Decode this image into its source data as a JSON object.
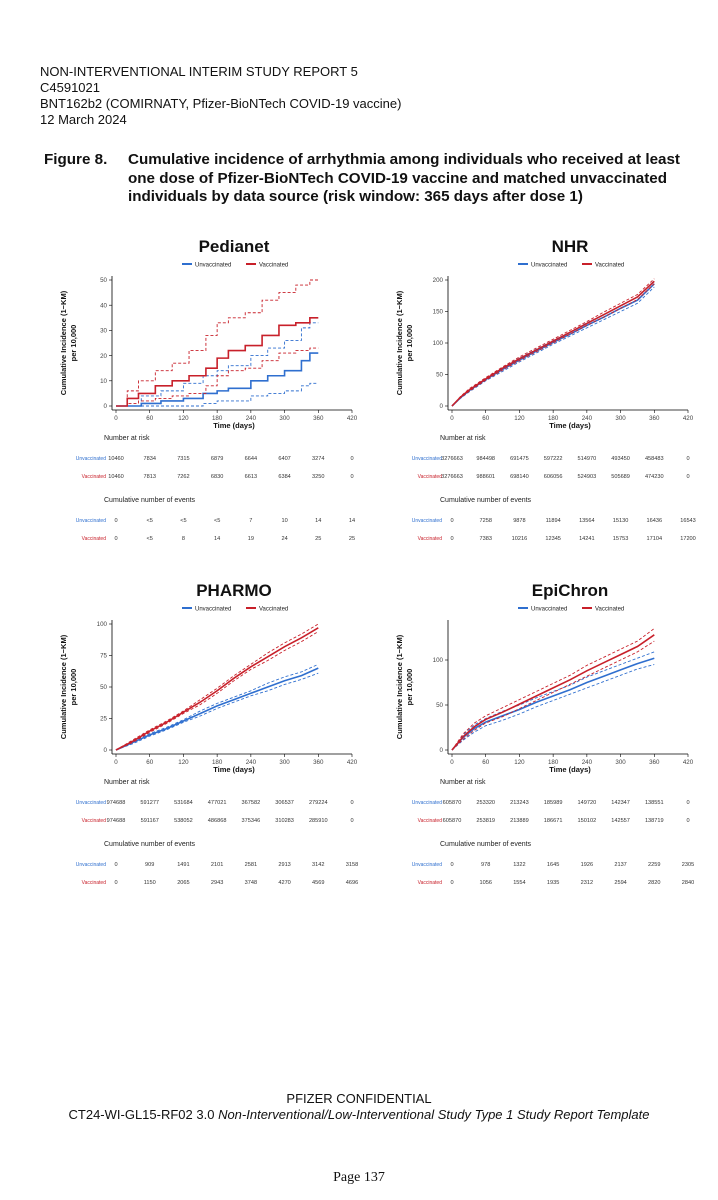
{
  "header": {
    "lines": [
      "NON-INTERVENTIONAL INTERIM STUDY REPORT 5",
      "C4591021",
      "BNT162b2 (COMIRNATY, Pfizer-BioNTech COVID-19 vaccine)",
      "12 March 2024"
    ]
  },
  "figure": {
    "label": "Figure 8.",
    "caption": "Cumulative incidence of arrhythmia among individuals who received at least one dose of Pfizer-BioNTech COVID-19 vaccine and matched unvaccinated individuals by data source (risk window: 365 days after dose 1)"
  },
  "footer": {
    "confidential": "PFIZER CONFIDENTIAL",
    "template_code": "CT24-WI-GL15-RF02 3.0 ",
    "template_name": "Non-Interventional/Low-Interventional Study Type 1 Study Report Template",
    "page": "Page 137"
  },
  "colors": {
    "unvaccinated": "#2f6fcf",
    "vaccinated": "#c8202a"
  },
  "chart_data": [
    {
      "type": "line",
      "title": "Pedianet",
      "xlabel": "Time (days)",
      "ylabel": "Cumulative Incidence (1−KM)\nper 10,000",
      "xlim": [
        0,
        420
      ],
      "ylim": [
        0,
        50
      ],
      "xticks": [
        0,
        60,
        120,
        180,
        240,
        300,
        360,
        420
      ],
      "yticks": [
        0,
        10,
        20,
        30,
        40,
        50
      ],
      "legend": "top",
      "step": true,
      "series": [
        {
          "name": "Unvaccinated",
          "x": [
            0,
            45,
            80,
            120,
            155,
            180,
            200,
            240,
            270,
            300,
            330,
            345,
            360
          ],
          "y": [
            0,
            1,
            2,
            3,
            5,
            6,
            7,
            10,
            12,
            14,
            18,
            21,
            21
          ],
          "lower": [
            0,
            0,
            0,
            0,
            1,
            2,
            2,
            4,
            5,
            6,
            8,
            9,
            9
          ],
          "upper": [
            0,
            4,
            6,
            9,
            12,
            14,
            16,
            20,
            23,
            26,
            31,
            33,
            33
          ]
        },
        {
          "name": "Vaccinated",
          "x": [
            0,
            20,
            40,
            70,
            100,
            130,
            160,
            180,
            200,
            230,
            260,
            290,
            320,
            345,
            360
          ],
          "y": [
            0,
            3,
            5,
            8,
            10,
            12,
            15,
            19,
            22,
            24,
            28,
            32,
            33,
            35,
            35
          ],
          "lower": [
            0,
            1,
            2,
            3,
            4,
            5,
            8,
            12,
            14,
            15,
            18,
            21,
            22,
            23,
            23
          ],
          "upper": [
            0,
            6,
            10,
            14,
            17,
            22,
            28,
            33,
            35,
            37,
            42,
            45,
            48,
            50,
            50
          ]
        }
      ],
      "number_at_risk": {
        "title": "Number at risk",
        "rows": [
          {
            "name": "Unvaccinated",
            "values": [
              "10460",
              "7834",
              "7315",
              "6879",
              "6644",
              "6407",
              "3274",
              "0"
            ]
          },
          {
            "name": "Vaccinated",
            "values": [
              "10460",
              "7813",
              "7262",
              "6830",
              "6613",
              "6384",
              "3250",
              "0"
            ]
          }
        ]
      },
      "cumulative_events": {
        "title": "Cumulative number of events",
        "rows": [
          {
            "name": "Unvaccinated",
            "values": [
              "0",
              "<5",
              "<5",
              "<5",
              "7",
              "10",
              "14",
              "14"
            ]
          },
          {
            "name": "Vaccinated",
            "values": [
              "0",
              "<5",
              "8",
              "14",
              "19",
              "24",
              "25",
              "25"
            ]
          }
        ]
      }
    },
    {
      "type": "line",
      "title": "NHR",
      "xlabel": "Time (days)",
      "ylabel": "Cumulative Incidence (1−KM)\nper 10,000",
      "xlim": [
        0,
        420
      ],
      "ylim": [
        0,
        200
      ],
      "xticks": [
        0,
        60,
        120,
        180,
        240,
        300,
        360,
        420
      ],
      "yticks": [
        0,
        50,
        100,
        150,
        200
      ],
      "legend": "top",
      "step": false,
      "series": [
        {
          "name": "Unvaccinated",
          "x": [
            0,
            15,
            30,
            60,
            90,
            120,
            150,
            180,
            210,
            240,
            270,
            300,
            330,
            360
          ],
          "y": [
            0,
            13,
            24,
            42,
            58,
            73,
            87,
            101,
            114,
            128,
            141,
            155,
            168,
            194
          ],
          "lower": [
            0,
            12,
            22,
            40,
            55,
            70,
            84,
            98,
            111,
            124,
            137,
            150,
            163,
            189
          ],
          "upper": [
            0,
            14,
            26,
            44,
            61,
            76,
            90,
            104,
            117,
            132,
            145,
            159,
            173,
            199
          ]
        },
        {
          "name": "Vaccinated",
          "x": [
            0,
            15,
            30,
            60,
            90,
            120,
            150,
            180,
            210,
            240,
            270,
            300,
            330,
            360
          ],
          "y": [
            0,
            14,
            25,
            43,
            60,
            75,
            89,
            103,
            117,
            131,
            145,
            159,
            173,
            198
          ],
          "lower": [
            0,
            13,
            23,
            41,
            57,
            72,
            86,
            100,
            114,
            128,
            141,
            155,
            169,
            194
          ],
          "upper": [
            0,
            15,
            27,
            45,
            62,
            78,
            92,
            106,
            120,
            134,
            149,
            163,
            177,
            202
          ]
        }
      ],
      "number_at_risk": {
        "title": "Number at risk",
        "rows": [
          {
            "name": "Unvaccinated",
            "values": [
              "3276663",
              "984498",
              "691475",
              "597222",
              "514970",
              "493450",
              "458483",
              "0"
            ]
          },
          {
            "name": "Vaccinated",
            "values": [
              "3276663",
              "988601",
              "698140",
              "606056",
              "524903",
              "505689",
              "474230",
              "0"
            ]
          }
        ]
      },
      "cumulative_events": {
        "title": "Cumulative number of events",
        "rows": [
          {
            "name": "Unvaccinated",
            "values": [
              "0",
              "7258",
              "9878",
              "11894",
              "13564",
              "15130",
              "16436",
              "16543"
            ]
          },
          {
            "name": "Vaccinated",
            "values": [
              "0",
              "7383",
              "10216",
              "12345",
              "14241",
              "15753",
              "17104",
              "17200"
            ]
          }
        ]
      }
    },
    {
      "type": "line",
      "title": "PHARMO",
      "xlabel": "Time (days)",
      "ylabel": "Cumulative Incidence (1−KM)\nper 10,000",
      "xlim": [
        0,
        420
      ],
      "ylim": [
        0,
        100
      ],
      "xticks": [
        0,
        60,
        120,
        180,
        240,
        300,
        360,
        420
      ],
      "yticks": [
        0,
        25,
        50,
        75,
        100
      ],
      "legend": "top",
      "step": false,
      "series": [
        {
          "name": "Unvaccinated",
          "x": [
            0,
            30,
            60,
            90,
            120,
            150,
            180,
            210,
            240,
            270,
            300,
            330,
            360
          ],
          "y": [
            0,
            6,
            12,
            17,
            23,
            29,
            35,
            40,
            45,
            50,
            55,
            59,
            65
          ],
          "lower": [
            0,
            5,
            11,
            16,
            22,
            27,
            33,
            38,
            43,
            47,
            52,
            56,
            61
          ],
          "upper": [
            0,
            7,
            13,
            18,
            24,
            31,
            37,
            42,
            47,
            53,
            58,
            62,
            68
          ]
        },
        {
          "name": "Vaccinated",
          "x": [
            0,
            30,
            60,
            90,
            120,
            150,
            180,
            210,
            240,
            270,
            300,
            330,
            360
          ],
          "y": [
            0,
            7,
            15,
            22,
            30,
            38,
            47,
            57,
            66,
            74,
            82,
            89,
            97
          ],
          "lower": [
            0,
            6,
            14,
            21,
            29,
            36,
            45,
            55,
            64,
            71,
            79,
            86,
            94
          ],
          "upper": [
            0,
            8,
            16,
            23,
            31,
            40,
            49,
            59,
            68,
            77,
            85,
            92,
            100
          ]
        }
      ],
      "number_at_risk": {
        "title": "Number at risk",
        "rows": [
          {
            "name": "Unvaccinated",
            "values": [
              "974688",
              "591277",
              "531684",
              "477021",
              "367582",
              "306537",
              "279224",
              "0"
            ]
          },
          {
            "name": "Vaccinated",
            "values": [
              "974688",
              "591167",
              "538052",
              "486868",
              "375346",
              "310283",
              "285910",
              "0"
            ]
          }
        ]
      },
      "cumulative_events": {
        "title": "Cumulative number of events",
        "rows": [
          {
            "name": "Unvaccinated",
            "values": [
              "0",
              "909",
              "1491",
              "2101",
              "2581",
              "2913",
              "3142",
              "3158"
            ]
          },
          {
            "name": "Vaccinated",
            "values": [
              "0",
              "1150",
              "2065",
              "2943",
              "3748",
              "4270",
              "4569",
              "4696"
            ]
          }
        ]
      }
    },
    {
      "type": "line",
      "title": "EpiChron",
      "xlabel": "Time (days)",
      "ylabel": "Cumulative Incidence (1−KM)\nper 10,000",
      "xlim": [
        0,
        420
      ],
      "ylim": [
        0,
        140
      ],
      "xticks": [
        0,
        60,
        120,
        180,
        240,
        300,
        360,
        420
      ],
      "yticks": [
        0,
        50,
        100
      ],
      "legend": "top",
      "step": false,
      "series": [
        {
          "name": "Unvaccinated",
          "x": [
            0,
            20,
            40,
            60,
            90,
            120,
            150,
            180,
            210,
            240,
            270,
            300,
            330,
            360
          ],
          "y": [
            0,
            14,
            24,
            31,
            38,
            45,
            53,
            60,
            67,
            75,
            82,
            89,
            96,
            102
          ],
          "lower": [
            0,
            11,
            20,
            27,
            33,
            40,
            48,
            55,
            62,
            69,
            76,
            83,
            90,
            95
          ],
          "upper": [
            0,
            17,
            28,
            35,
            43,
            50,
            58,
            65,
            72,
            81,
            88,
            95,
            102,
            109
          ]
        },
        {
          "name": "Vaccinated",
          "x": [
            0,
            20,
            40,
            60,
            90,
            120,
            150,
            180,
            210,
            240,
            270,
            300,
            330,
            360
          ],
          "y": [
            0,
            15,
            26,
            34,
            42,
            51,
            60,
            69,
            78,
            88,
            97,
            106,
            115,
            128
          ],
          "lower": [
            0,
            12,
            22,
            30,
            37,
            46,
            55,
            64,
            73,
            82,
            91,
            100,
            109,
            121
          ],
          "upper": [
            0,
            18,
            30,
            38,
            47,
            56,
            65,
            74,
            83,
            94,
            103,
            112,
            121,
            135
          ]
        }
      ],
      "number_at_risk": {
        "title": "Number at risk",
        "rows": [
          {
            "name": "Unvaccinated",
            "values": [
              "605870",
              "253320",
              "213243",
              "185989",
              "149720",
              "142347",
              "138551",
              "0"
            ]
          },
          {
            "name": "Vaccinated",
            "values": [
              "605870",
              "253819",
              "213889",
              "186671",
              "150102",
              "142557",
              "138719",
              "0"
            ]
          }
        ]
      },
      "cumulative_events": {
        "title": "Cumulative number of events",
        "rows": [
          {
            "name": "Unvaccinated",
            "values": [
              "0",
              "978",
              "1322",
              "1645",
              "1926",
              "2137",
              "2259",
              "2305"
            ]
          },
          {
            "name": "Vaccinated",
            "values": [
              "0",
              "1056",
              "1554",
              "1935",
              "2312",
              "2594",
              "2820",
              "2840"
            ]
          }
        ]
      }
    }
  ]
}
